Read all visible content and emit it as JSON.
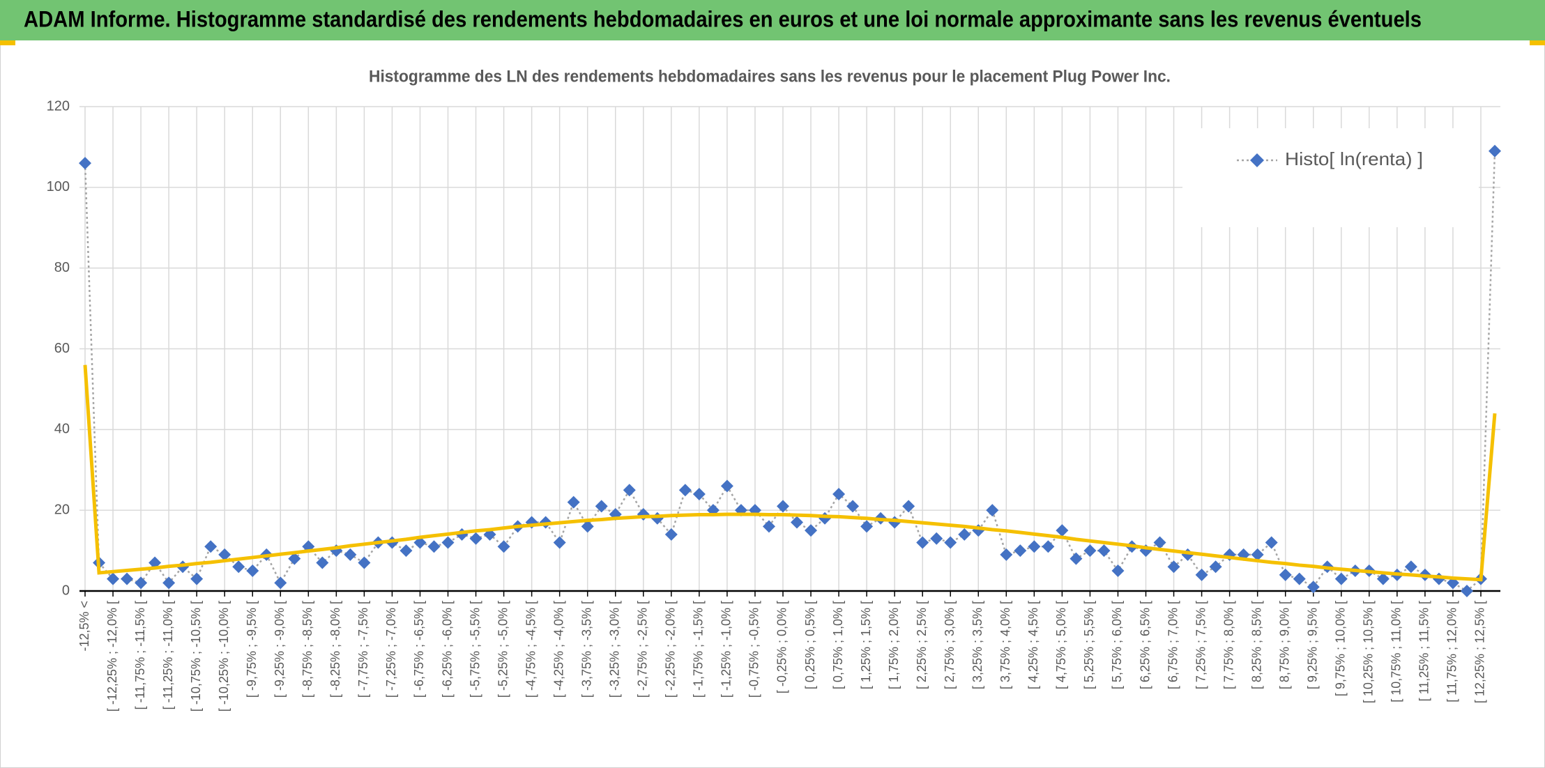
{
  "header": {
    "title": "ADAM Informe. Histogramme standardisé des rendements hebdomadaires en euros et une loi normale approximante sans les revenus éventuels"
  },
  "chart_data": {
    "type": "line",
    "title": "Histogramme des LN des rendements hebdomadaires sans les revenus pour le placement Plug Power Inc.",
    "categories": [
      "-12,5% <",
      null,
      "[ -12,25% ; -12,0% [",
      null,
      "[ -11,75% ; -11,5% [",
      null,
      "[ -11,25% ; -11,0% [",
      null,
      "[ -10,75% ; -10,5% [",
      null,
      "[ -10,25% ; -10,0% [",
      null,
      "[ -9,75% ; -9,5% [",
      null,
      "[ -9,25% ; -9,0% [",
      null,
      "[ -8,75% ; -8,5% [",
      null,
      "[ -8,25% ; -8,0% [",
      null,
      "[ -7,75% ; -7,5% [",
      null,
      "[ -7,25% ; -7,0% [",
      null,
      "[ -6,75% ; -6,5% [",
      null,
      "[ -6,25% ; -6,0% [",
      null,
      "[ -5,75% ; -5,5% [",
      null,
      "[ -5,25% ; -5,0% [",
      null,
      "[ -4,75% ; -4,5% [",
      null,
      "[ -4,25% ; -4,0% [",
      null,
      "[ -3,75% ; -3,5% [",
      null,
      "[ -3,25% ; -3,0% [",
      null,
      "[ -2,75% ; -2,5% [",
      null,
      "[ -2,25% ; -2,0% [",
      null,
      "[ -1,75% ; -1,5% [",
      null,
      "[ -1,25% ; -1,0% [",
      null,
      "[ -0,75% ; -0,5% [",
      null,
      "[ -0,25% ; 0,0% [",
      null,
      "[ 0,25% ; 0,5% [",
      null,
      "[ 0,75% ; 1,0% [",
      null,
      "[ 1,25% ; 1,5% [",
      null,
      "[ 1,75% ; 2,0% [",
      null,
      "[ 2,25% ; 2,5% [",
      null,
      "[ 2,75% ; 3,0% [",
      null,
      "[ 3,25% ; 3,5% [",
      null,
      "[ 3,75% ; 4,0% [",
      null,
      "[ 4,25% ; 4,5% [",
      null,
      "[ 4,75% ; 5,0% [",
      null,
      "[ 5,25% ; 5,5% [",
      null,
      "[ 5,75% ; 6,0% [",
      null,
      "[ 6,25% ; 6,5% [",
      null,
      "[ 6,75% ; 7,0% [",
      null,
      "[ 7,25% ; 7,5% [",
      null,
      "[ 7,75% ; 8,0% [",
      null,
      "[ 8,25% ; 8,5% [",
      null,
      "[ 8,75% ; 9,0% [",
      null,
      "[ 9,25% ; 9,5% [",
      null,
      "[ 9,75% ; 10,0% [",
      null,
      "[ 10,25% ; 10,5% [",
      null,
      "[ 10,75% ; 11,0% [",
      null,
      "[ 11,25% ; 11,5% [",
      null,
      "[ 11,75% ; 12,0% [",
      null,
      "[ 12,25% ; 12,5% [",
      null
    ],
    "series": [
      {
        "name": "Histo[ ln(renta) ]",
        "color": "#4472c4",
        "line_color": "#a5a5a5",
        "values": [
          106,
          7,
          3,
          3,
          2,
          7,
          2,
          6,
          3,
          11,
          9,
          6,
          5,
          9,
          2,
          8,
          11,
          7,
          10,
          9,
          7,
          12,
          12,
          10,
          12,
          11,
          12,
          14,
          13,
          14,
          11,
          16,
          17,
          17,
          12,
          22,
          16,
          21,
          19,
          25,
          19,
          18,
          14,
          25,
          24,
          20,
          26,
          20,
          20,
          16,
          21,
          17,
          15,
          18,
          24,
          21,
          16,
          18,
          17,
          21,
          12,
          13,
          12,
          14,
          15,
          20,
          9,
          10,
          11,
          11,
          15,
          8,
          10,
          10,
          5,
          11,
          10,
          12,
          6,
          9,
          4,
          6,
          9,
          9,
          9,
          12,
          4,
          3,
          1,
          6,
          3,
          5,
          5,
          3,
          4,
          6,
          4,
          3,
          2,
          0,
          3,
          109
        ]
      },
      {
        "color": "#f5c000",
        "values": [
          56,
          4.5,
          4.8,
          5.1,
          5.4,
          5.7,
          6.1,
          6.4,
          6.8,
          7.1,
          7.5,
          7.9,
          8.3,
          8.7,
          9.1,
          9.5,
          9.9,
          10.3,
          10.7,
          11.2,
          11.6,
          12.0,
          12.4,
          12.8,
          13.3,
          13.7,
          14.1,
          14.5,
          14.9,
          15.2,
          15.6,
          16.0,
          16.3,
          16.6,
          16.9,
          17.2,
          17.5,
          17.7,
          18.0,
          18.2,
          18.4,
          18.5,
          18.7,
          18.8,
          18.9,
          18.9,
          19.0,
          19.0,
          19.0,
          18.9,
          18.9,
          18.8,
          18.7,
          18.5,
          18.4,
          18.2,
          18.0,
          17.7,
          17.5,
          17.2,
          16.9,
          16.6,
          16.3,
          16.0,
          15.6,
          15.2,
          14.9,
          14.5,
          14.1,
          13.7,
          13.3,
          12.8,
          12.4,
          12.0,
          11.6,
          11.2,
          10.7,
          10.3,
          9.9,
          9.5,
          9.1,
          8.7,
          8.3,
          7.9,
          7.5,
          7.1,
          6.8,
          6.4,
          6.1,
          5.7,
          5.4,
          5.1,
          4.8,
          4.5,
          4.2,
          4.0,
          3.7,
          3.5,
          3.2,
          3.0,
          2.8,
          44
        ]
      }
    ],
    "ylim": [
      0,
      120
    ],
    "yticks": [
      0,
      20,
      40,
      60,
      80,
      100,
      120
    ],
    "grid": true,
    "legend": "top-right"
  }
}
